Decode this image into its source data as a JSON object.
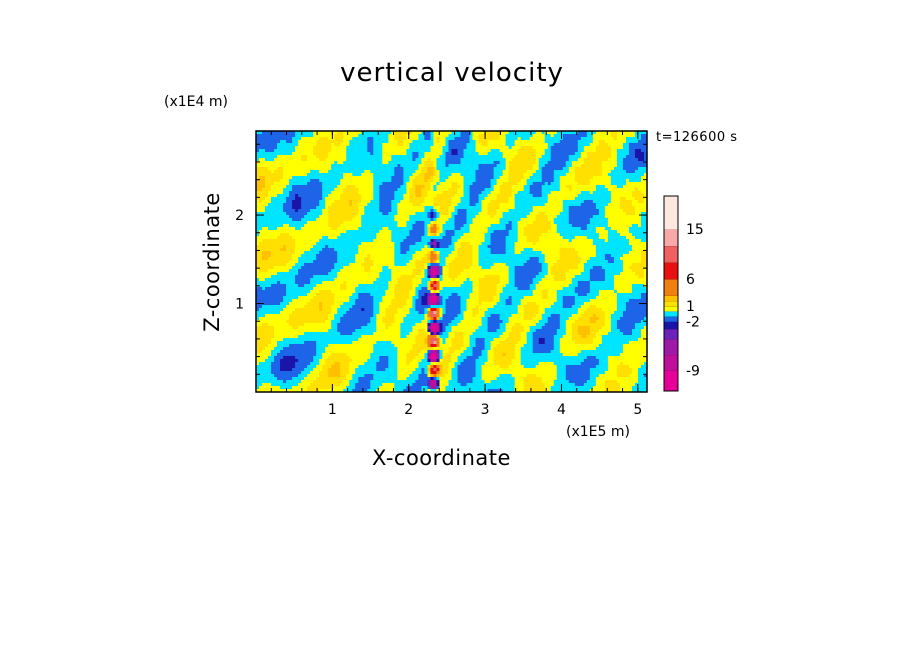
{
  "chart_data": {
    "type": "heatmap",
    "title": "vertical velocity",
    "xlabel": "X-coordinate",
    "ylabel": "Z-coordinate",
    "x_unit": "(x1E5 m)",
    "y_unit": "(x1E4 m)",
    "time_label": "t=126600 s",
    "xlim": [
      0,
      5.12
    ],
    "ylim": [
      0,
      2.95
    ],
    "x_ticks": [
      "1",
      "2",
      "3",
      "4",
      "5"
    ],
    "y_ticks": [
      "1",
      "2"
    ],
    "grid": false,
    "legend_position": "right",
    "colorbar": {
      "tick_labels": [
        "15",
        "6",
        "1",
        "-2",
        "-9"
      ],
      "levels": [
        {
          "lo": -12,
          "hi": -9,
          "color": "#e60099"
        },
        {
          "lo": -9,
          "hi": -6,
          "color": "#c0109b"
        },
        {
          "lo": -6,
          "hi": -4,
          "color": "#9e1aa6"
        },
        {
          "lo": -4,
          "hi": -3,
          "color": "#6a22b8"
        },
        {
          "lo": -3,
          "hi": -2,
          "color": "#1a14a8"
        },
        {
          "lo": -2,
          "hi": -1,
          "color": "#1e64e8"
        },
        {
          "lo": -1,
          "hi": 0,
          "color": "#00e5ff"
        },
        {
          "lo": 0,
          "hi": 1,
          "color": "#ffff00"
        },
        {
          "lo": 1,
          "hi": 2,
          "color": "#ffe000"
        },
        {
          "lo": 2,
          "hi": 3,
          "color": "#ffc000"
        },
        {
          "lo": 3,
          "hi": 6,
          "color": "#f08010"
        },
        {
          "lo": 6,
          "hi": 9,
          "color": "#e81010"
        },
        {
          "lo": 9,
          "hi": 12,
          "color": "#f06060"
        },
        {
          "lo": 12,
          "hi": 15,
          "color": "#f8a8a8"
        },
        {
          "lo": 15,
          "hi": 20,
          "color": "#fde8e0"
        }
      ]
    },
    "dominant_colors": {
      "negative": "#00e5ff",
      "positive": "#ffff00"
    }
  }
}
